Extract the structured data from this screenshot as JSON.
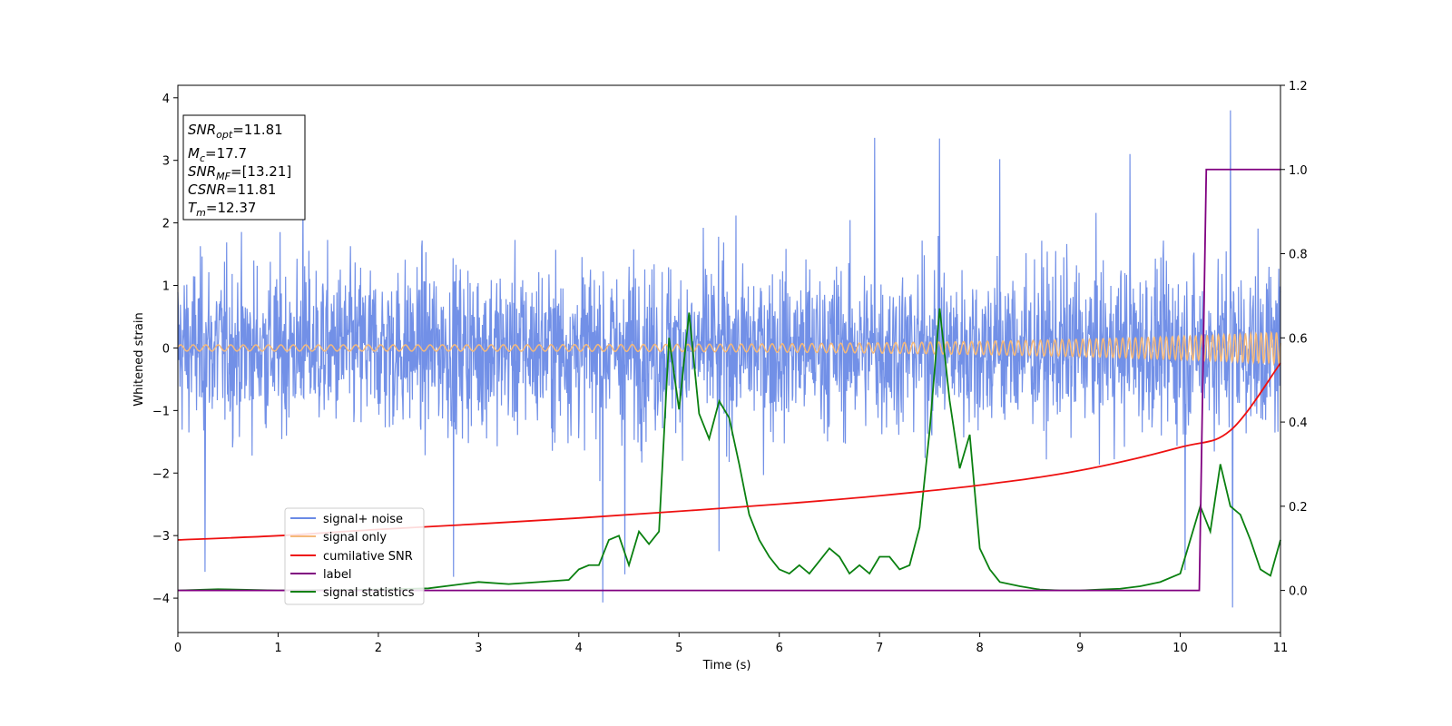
{
  "chart_data": {
    "type": "line",
    "xlabel": "Time (s)",
    "ylabel": "Whitened strain",
    "xlim": [
      0,
      11
    ],
    "ylim": [
      -4.55,
      4.2
    ],
    "y2lim": [
      -0.1,
      1.2
    ],
    "x_ticks": [
      0,
      1,
      2,
      3,
      4,
      5,
      6,
      7,
      8,
      9,
      10,
      11
    ],
    "y_ticks": [
      -4,
      -3,
      -2,
      -1,
      0,
      1,
      2,
      3,
      4
    ],
    "y2_ticks": [
      0.0,
      0.2,
      0.4,
      0.6,
      0.8,
      1.0,
      1.2
    ],
    "grid": false,
    "legend_position": "lower-left",
    "info_box": {
      "snr_opt": {
        "main": "SNR",
        "sub": "opt",
        "value": "=11.81"
      },
      "mc": {
        "main": "M",
        "sub": "c",
        "value": "=17.7"
      },
      "snr_mf": {
        "main": "SNR",
        "sub": "MF",
        "value": "=[13.21]"
      },
      "csnr": {
        "main": "CSNR",
        "value": "=11.81"
      },
      "tm": {
        "main": "T",
        "sub": "m",
        "value": "=12.37"
      }
    },
    "series": [
      {
        "name": "signal+ noise",
        "axis": "left",
        "color": "#6a8ae6",
        "kind": "noise",
        "description_values": {
          "core_amplitude": 1.8,
          "peak_amplitude": 3.8,
          "min": -4.1,
          "max": 3.8
        },
        "spikes": [
          [
            0.27,
            -3.58
          ],
          [
            1.25,
            2.7
          ],
          [
            2.75,
            -3.66
          ],
          [
            4.24,
            -4.07
          ],
          [
            4.46,
            -3.62
          ],
          [
            5.4,
            -3.25
          ],
          [
            6.95,
            3.36
          ],
          [
            7.6,
            3.35
          ],
          [
            8.2,
            3.02
          ],
          [
            9.5,
            3.1
          ],
          [
            10.05,
            -3.55
          ],
          [
            10.5,
            3.8
          ],
          [
            10.52,
            -4.15
          ]
        ]
      },
      {
        "name": "signal only",
        "axis": "left",
        "color": "#f5b97a",
        "kind": "chirp",
        "description_values": {
          "amplitude_start": 0.05,
          "amplitude_end": 0.25
        }
      },
      {
        "name": "cumilative SNR",
        "axis": "right",
        "color": "#ee1111",
        "x": [
          0,
          1,
          2,
          3,
          4,
          5,
          6,
          7,
          8,
          9,
          10,
          10.5,
          11
        ],
        "y": [
          0.12,
          0.13,
          0.145,
          0.158,
          0.172,
          0.188,
          0.205,
          0.225,
          0.25,
          0.285,
          0.34,
          0.38,
          0.54
        ]
      },
      {
        "name": "label",
        "axis": "right",
        "color": "#800080",
        "x": [
          0,
          10.19,
          10.26,
          11
        ],
        "y": [
          0,
          0,
          1,
          1
        ]
      },
      {
        "name": "signal statistics",
        "axis": "right",
        "color": "#0a8010",
        "x": [
          0,
          0.4,
          1.0,
          2.0,
          2.5,
          3.0,
          3.3,
          3.6,
          3.9,
          4.0,
          4.1,
          4.2,
          4.3,
          4.4,
          4.5,
          4.6,
          4.7,
          4.8,
          4.9,
          5.0,
          5.1,
          5.2,
          5.3,
          5.4,
          5.5,
          5.6,
          5.7,
          5.8,
          5.9,
          6.0,
          6.1,
          6.2,
          6.3,
          6.4,
          6.5,
          6.6,
          6.7,
          6.8,
          6.9,
          7.0,
          7.1,
          7.2,
          7.3,
          7.4,
          7.5,
          7.6,
          7.7,
          7.8,
          7.9,
          8.0,
          8.1,
          8.2,
          8.4,
          8.6,
          8.8,
          9.0,
          9.2,
          9.4,
          9.6,
          9.8,
          10.0,
          10.1,
          10.2,
          10.3,
          10.4,
          10.5,
          10.6,
          10.7,
          10.8,
          10.9,
          11.0
        ],
        "y": [
          0.0,
          0.003,
          0.0,
          0.002,
          0.005,
          0.02,
          0.015,
          0.02,
          0.025,
          0.05,
          0.06,
          0.06,
          0.12,
          0.13,
          0.06,
          0.14,
          0.11,
          0.14,
          0.6,
          0.43,
          0.66,
          0.42,
          0.36,
          0.45,
          0.41,
          0.3,
          0.18,
          0.12,
          0.08,
          0.05,
          0.04,
          0.06,
          0.04,
          0.07,
          0.1,
          0.08,
          0.04,
          0.06,
          0.04,
          0.08,
          0.08,
          0.05,
          0.06,
          0.15,
          0.38,
          0.67,
          0.45,
          0.29,
          0.37,
          0.1,
          0.05,
          0.02,
          0.01,
          0.002,
          0.0,
          0.0,
          0.002,
          0.004,
          0.01,
          0.02,
          0.04,
          0.12,
          0.2,
          0.14,
          0.3,
          0.2,
          0.18,
          0.12,
          0.05,
          0.035,
          0.12
        ]
      }
    ]
  }
}
